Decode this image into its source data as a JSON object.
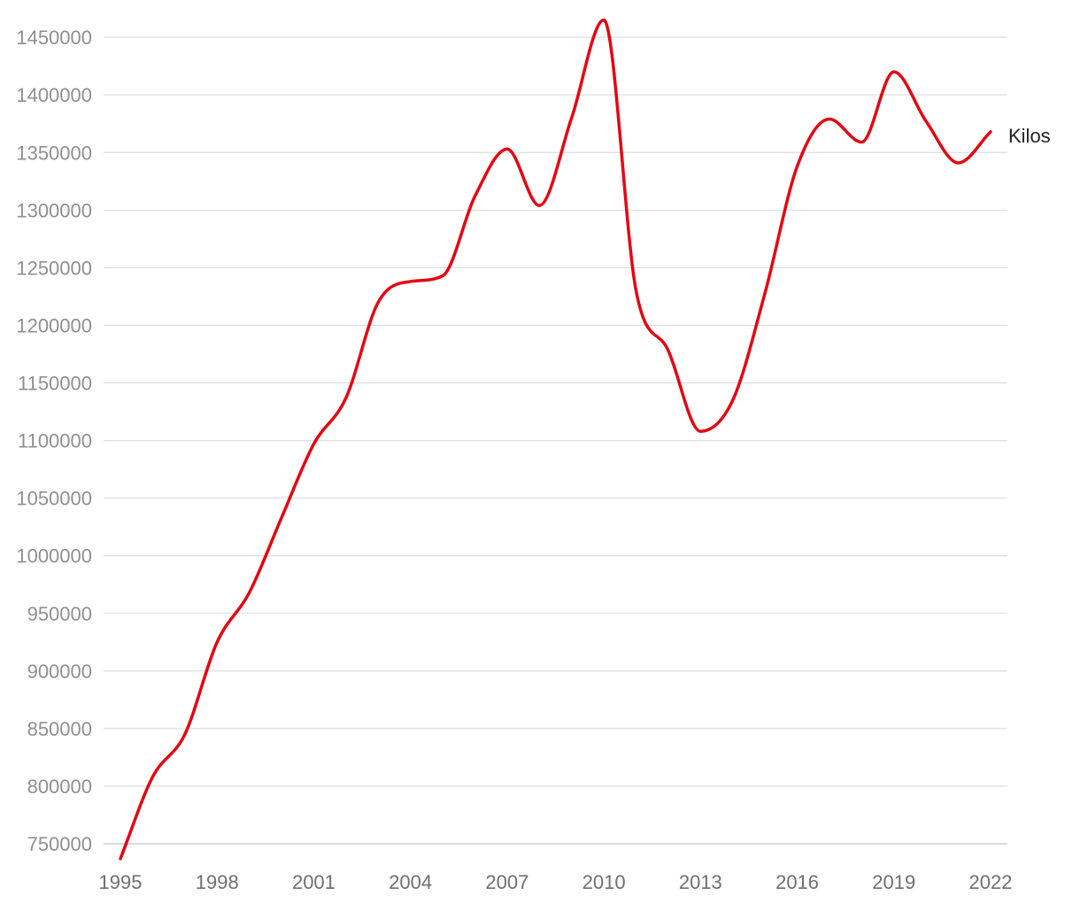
{
  "chart_data": {
    "type": "line",
    "title": "",
    "xlabel": "",
    "ylabel": "",
    "x": [
      1995,
      1996,
      1997,
      1998,
      1999,
      2000,
      2001,
      2002,
      2003,
      2004,
      2005,
      2006,
      2007,
      2008,
      2009,
      2010,
      2011,
      2012,
      2013,
      2014,
      2015,
      2016,
      2017,
      2018,
      2019,
      2020,
      2021,
      2022
    ],
    "series": [
      {
        "name": "Kilos",
        "color": "#e30613",
        "values": [
          737000,
          808000,
          845000,
          925000,
          968000,
          1033000,
          1097000,
          1137000,
          1220000,
          1238000,
          1243000,
          1312000,
          1353000,
          1304000,
          1380000,
          1465000,
          1230000,
          1178000,
          1108000,
          1135000,
          1228000,
          1338000,
          1379000,
          1359000,
          1420000,
          1377000,
          1341000,
          1368000
        ]
      }
    ],
    "yticks": [
      750000,
      800000,
      850000,
      900000,
      950000,
      1000000,
      1050000,
      1100000,
      1150000,
      1200000,
      1250000,
      1300000,
      1350000,
      1400000,
      1450000
    ],
    "xticks": [
      1995,
      1998,
      2001,
      2004,
      2007,
      2010,
      2013,
      2016,
      2019,
      2022
    ],
    "ylim": [
      737000,
      1467000
    ],
    "xlim": [
      1995,
      2022
    ],
    "grid": true,
    "legend": "inline-right"
  }
}
